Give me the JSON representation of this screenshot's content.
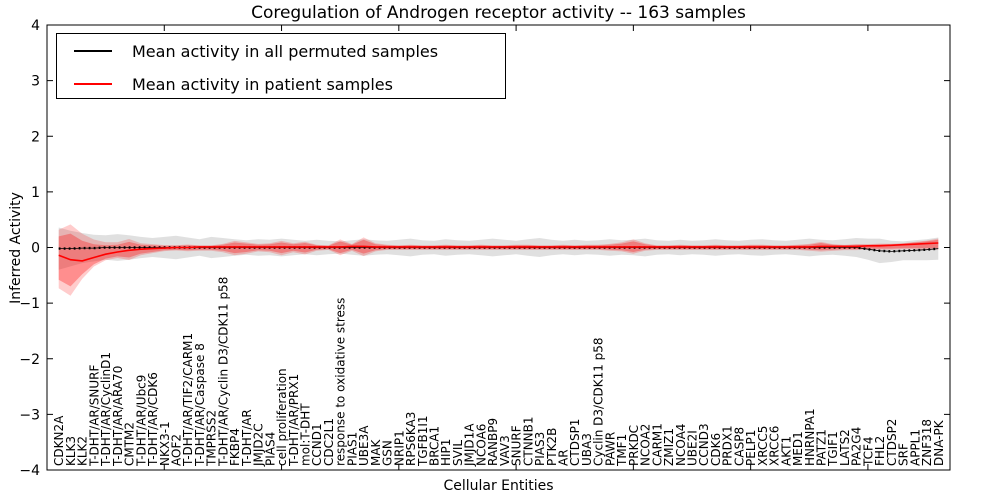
{
  "chart_data": {
    "type": "line",
    "title": "Coregulation of Androgen receptor activity -- 163 samples",
    "xlabel": "Cellular Entities",
    "ylabel": "Inferred Activity",
    "ylim": [
      -4,
      4
    ],
    "grid": false,
    "legend": {
      "position": "upper left"
    },
    "yticks": [
      {
        "value": 4,
        "label": "4"
      },
      {
        "value": 3,
        "label": "3"
      },
      {
        "value": 2,
        "label": "2"
      },
      {
        "value": 1,
        "label": "1"
      },
      {
        "value": 0,
        "label": "0"
      },
      {
        "value": -1,
        "label": "−1"
      },
      {
        "value": -2,
        "label": "−2"
      },
      {
        "value": -3,
        "label": "−3"
      },
      {
        "value": -4,
        "label": "−4"
      }
    ],
    "xtick_positions": [
      10,
      20,
      30,
      40,
      50,
      60,
      70
    ],
    "categories": [
      "CDKN2A",
      "KLK3",
      "KLK2",
      "T-DHT/AR/SNURF",
      "T-DHT/AR/CyclinD1",
      "T-DHT/AR/ARA70",
      "CMTM2",
      "T-DHT/AR/Ubc9",
      "T-DHT/AR/CDK6",
      "NKX3-1",
      "AOF2",
      "T-DHT/AR/TIF2/CARM1",
      "T-DHT/AR/Caspase 8",
      "TMPRSS2",
      "T-DHT/AR/Cyclin D3/CDK11 p58",
      "FKBP4",
      "T-DHT/AR",
      "JMJD2C",
      "PIAS4",
      "cell proliferation",
      "T-DHT/AR/PRX1",
      "mol:T-DHT",
      "CCND1",
      "CDC2L1",
      "response to oxidative stress",
      "PIAS1",
      "UBE3A",
      "MAK",
      "GSN",
      "NRIP1",
      "RPS6KA3",
      "TGFB1I1",
      "BRCA1",
      "HIP1",
      "SVIL",
      "JMJD1A",
      "NCOA6",
      "RANBP9",
      "VAV3",
      "SNURF",
      "CTNNB1",
      "PIAS3",
      "PTK2B",
      "AR",
      "CTDSP1",
      "UBA3",
      "Cyclin D3/CDK11 p58",
      "PAWR",
      "TMF1",
      "PRKDC",
      "NCOA2",
      "CARM1",
      "ZMIZ1",
      "NCOA4",
      "UBE2I",
      "CCND3",
      "CDK6",
      "PRDX1",
      "CASP8",
      "PELP1",
      "XRCC5",
      "XRCC6",
      "AKT1",
      "MED1",
      "HNRNPA1",
      "PATZ1",
      "TGIF1",
      "LATS2",
      "PA2G4",
      "TCF4",
      "FHL2",
      "CTDSP2",
      "SRF",
      "APPL1",
      "ZNF318",
      "DNA-PK"
    ],
    "series": [
      {
        "name": "Mean activity in all permuted samples",
        "color": "#000000",
        "band_color": "#000000",
        "band_opacity": 0.12,
        "values": [
          -0.02,
          -0.02,
          -0.01,
          -0.01,
          0,
          0,
          0,
          0,
          0,
          0,
          0,
          0,
          0,
          0,
          0,
          0,
          0,
          0,
          0,
          0,
          0,
          0,
          0,
          0,
          0,
          0,
          0,
          0,
          0,
          0,
          0,
          0,
          0,
          0,
          0,
          0,
          0,
          0,
          0,
          0,
          0,
          0,
          0,
          0,
          0,
          0,
          0,
          0,
          0,
          0,
          0,
          0,
          0,
          0,
          0,
          0,
          0,
          0,
          0,
          0,
          0,
          0,
          0,
          0,
          0,
          0,
          0,
          0,
          0,
          -0.03,
          -0.06,
          -0.07,
          -0.06,
          -0.05,
          -0.04,
          -0.02
        ],
        "band_halfwidth": [
          0.38,
          0.32,
          0.27,
          0.24,
          0.22,
          0.24,
          0.22,
          0.19,
          0.17,
          0.19,
          0.21,
          0.18,
          0.15,
          0.19,
          0.17,
          0.15,
          0.13,
          0.15,
          0.14,
          0.16,
          0.14,
          0.12,
          0.14,
          0.12,
          0.11,
          0.13,
          0.15,
          0.13,
          0.12,
          0.14,
          0.16,
          0.13,
          0.12,
          0.15,
          0.13,
          0.12,
          0.14,
          0.16,
          0.14,
          0.12,
          0.15,
          0.17,
          0.14,
          0.12,
          0.14,
          0.12,
          0.13,
          0.15,
          0.13,
          0.14,
          0.16,
          0.13,
          0.12,
          0.14,
          0.12,
          0.13,
          0.15,
          0.13,
          0.12,
          0.14,
          0.15,
          0.13,
          0.12,
          0.14,
          0.16,
          0.14,
          0.13,
          0.15,
          0.17,
          0.19,
          0.22,
          0.19,
          0.17,
          0.18,
          0.19,
          0.2
        ]
      },
      {
        "name": "Mean activity in patient samples",
        "color": "#ff0000",
        "band_color": "#ff0000",
        "band_opacity_inner": 0.3,
        "band_opacity_outer": 0.2,
        "outer_band_scale": 1.35,
        "values": [
          -0.14,
          -0.22,
          -0.24,
          -0.18,
          -0.12,
          -0.08,
          -0.05,
          -0.03,
          -0.02,
          -0.01,
          0,
          0,
          0.01,
          0.01,
          0.01,
          0.01,
          0.01,
          0.01,
          0.01,
          0.01,
          0.01,
          0.01,
          0.01,
          0.01,
          0.01,
          0.02,
          0.02,
          0.01,
          0.01,
          0.01,
          0.01,
          0.01,
          0.01,
          0.01,
          0.01,
          0.01,
          0.01,
          0.01,
          0.01,
          0.01,
          0.01,
          0.01,
          0.01,
          0.01,
          0.01,
          0.01,
          0.01,
          0.01,
          0.01,
          0.01,
          0.01,
          0.01,
          0.01,
          0.01,
          0.01,
          0.01,
          0.01,
          0.01,
          0.01,
          0.01,
          0.01,
          0.01,
          0.01,
          0.01,
          0.01,
          0.02,
          0.02,
          0.02,
          0.02,
          0.03,
          0.03,
          0.04,
          0.05,
          0.06,
          0.07,
          0.08
        ],
        "band_upper": [
          0.2,
          0.25,
          0.12,
          0.06,
          0.04,
          0.05,
          0.1,
          0.05,
          0.04,
          0.03,
          0.03,
          0.04,
          0.03,
          0.03,
          0.05,
          0.09,
          0.07,
          0.05,
          0.06,
          0.09,
          0.06,
          0.08,
          0.04,
          0.03,
          0.11,
          0.05,
          0.14,
          0.06,
          0.04,
          0.03,
          0.04,
          0.03,
          0.03,
          0.04,
          0.03,
          0.03,
          0.04,
          0.03,
          0.03,
          0.04,
          0.04,
          0.03,
          0.03,
          0.04,
          0.03,
          0.04,
          0.04,
          0.05,
          0.07,
          0.11,
          0.06,
          0.03,
          0.03,
          0.04,
          0.03,
          0.03,
          0.04,
          0.03,
          0.03,
          0.04,
          0.04,
          0.03,
          0.03,
          0.04,
          0.05,
          0.08,
          0.05,
          0.04,
          0.05,
          0.05,
          0.06,
          0.06,
          0.07,
          0.09,
          0.11,
          0.14
        ],
        "band_lower": [
          -0.58,
          -0.7,
          -0.48,
          -0.3,
          -0.2,
          -0.16,
          -0.18,
          -0.11,
          -0.08,
          -0.05,
          -0.04,
          -0.05,
          -0.04,
          -0.04,
          -0.06,
          -0.1,
          -0.08,
          -0.05,
          -0.06,
          -0.1,
          -0.06,
          -0.09,
          -0.04,
          -0.03,
          -0.1,
          -0.04,
          -0.11,
          -0.05,
          -0.03,
          -0.03,
          -0.03,
          -0.03,
          -0.03,
          -0.03,
          -0.03,
          -0.03,
          -0.03,
          -0.03,
          -0.03,
          -0.03,
          -0.03,
          -0.03,
          -0.03,
          -0.03,
          -0.03,
          -0.03,
          -0.03,
          -0.04,
          -0.05,
          -0.08,
          -0.04,
          -0.03,
          -0.03,
          -0.03,
          -0.03,
          -0.03,
          -0.03,
          -0.03,
          -0.03,
          -0.03,
          -0.03,
          -0.03,
          -0.03,
          -0.03,
          -0.04,
          -0.05,
          -0.04,
          -0.03,
          -0.03,
          -0.02,
          -0.02,
          -0.02,
          -0.01,
          -0.01,
          -0.01,
          -0.01
        ]
      }
    ]
  }
}
